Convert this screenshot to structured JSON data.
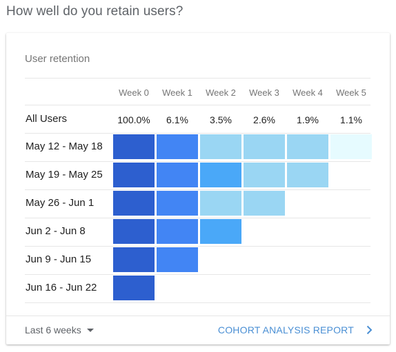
{
  "page": {
    "title": "How well do you retain users?"
  },
  "card": {
    "title": "User retention"
  },
  "table": {
    "week_headers": [
      "Week 0",
      "Week 1",
      "Week 2",
      "Week 3",
      "Week 4",
      "Week 5"
    ],
    "all_users": {
      "label": "All Users",
      "values": [
        "100.0%",
        "6.1%",
        "3.5%",
        "2.6%",
        "1.9%",
        "1.1%"
      ]
    },
    "cohorts": [
      {
        "label": "May 12 - May 18",
        "shades": [
          "#2d5fcf",
          "#4285f4",
          "#9ad6f3",
          "#9ad6f3",
          "#9ad6f3",
          "#e6fbff"
        ]
      },
      {
        "label": "May 19 - May 25",
        "shades": [
          "#2d5fcf",
          "#4285f4",
          "#4aa8f8",
          "#9ad6f3",
          "#9ad6f3"
        ]
      },
      {
        "label": "May 26 - Jun 1",
        "shades": [
          "#2d5fcf",
          "#4285f4",
          "#9ad6f3",
          "#9ad6f3"
        ]
      },
      {
        "label": "Jun 2 - Jun 8",
        "shades": [
          "#2d5fcf",
          "#4285f4",
          "#4aa8f8"
        ]
      },
      {
        "label": "Jun 9 - Jun 15",
        "shades": [
          "#2d5fcf",
          "#4285f4"
        ]
      },
      {
        "label": "Jun 16 - Jun 22",
        "shades": [
          "#2d5fcf"
        ]
      }
    ]
  },
  "footer": {
    "range_label": "Last 6 weeks",
    "report_link_label": "COHORT ANALYSIS REPORT"
  },
  "colors": {
    "accent": "#4a8fd4"
  }
}
